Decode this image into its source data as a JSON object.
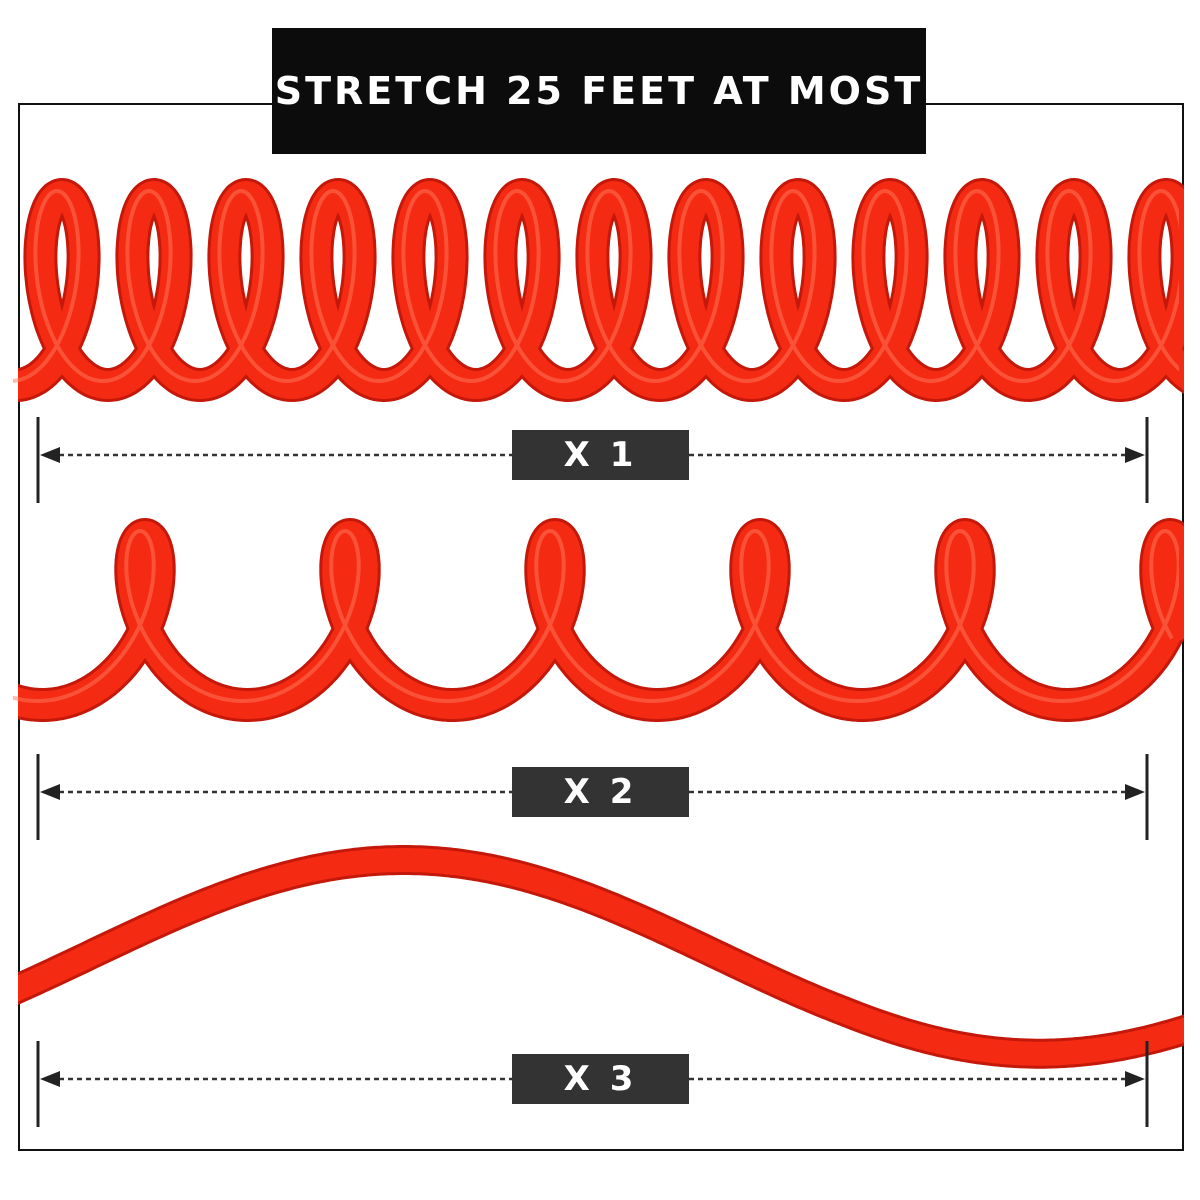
{
  "title": "STRETCH 25 FEET AT MOST",
  "rows": [
    {
      "label": "X 1"
    },
    {
      "label": "X 2"
    },
    {
      "label": "X 3"
    }
  ],
  "colors": {
    "hose": "#f42a12",
    "title_bg": "#0c0c0c",
    "label_bg": "#333333",
    "frame": "#111111"
  }
}
